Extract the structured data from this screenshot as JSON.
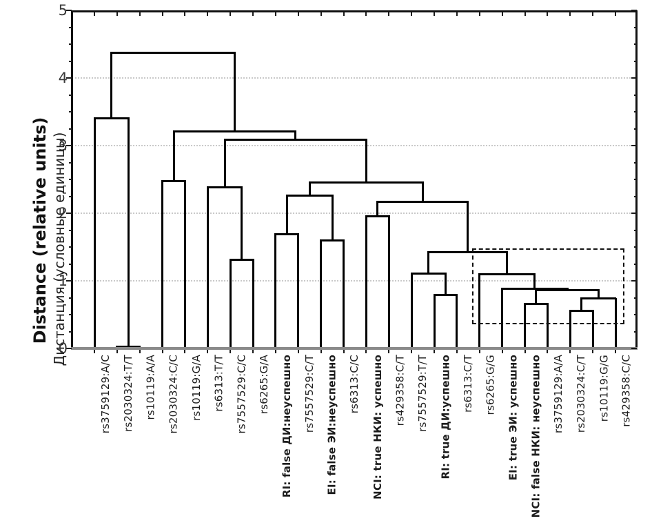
{
  "chart_data": {
    "type": "dendrogram",
    "title": "",
    "ylabel_en": "Distance (relative units)",
    "ylabel_ru": "Дистанция (условные единицы)",
    "ylim": [
      0,
      5
    ],
    "yticks": [
      0,
      1,
      2,
      3,
      4,
      5
    ],
    "minor_tick_step": 0.25,
    "gridlines_at": [
      1,
      2,
      3,
      4
    ],
    "grid_style": "dotted horizontal",
    "legend": "none",
    "leaves": [
      {
        "label": "rs3759129:A/C",
        "bold": false
      },
      {
        "label": "rs2030324:T/T",
        "bold": false
      },
      {
        "label": "rs10119:A/A",
        "bold": false
      },
      {
        "label": "rs2030324:C/C",
        "bold": false
      },
      {
        "label": "rs10119:G/A",
        "bold": false
      },
      {
        "label": "rs6313:T/T",
        "bold": false
      },
      {
        "label": "rs7557529:C/C",
        "bold": false
      },
      {
        "label": "rs6265:G/A",
        "bold": false
      },
      {
        "label": "RI: false ДИ:неуспешно",
        "bold": true
      },
      {
        "label": "rs7557529:C/T",
        "bold": false
      },
      {
        "label": "EI: false ЭИ:неуспешно",
        "bold": true
      },
      {
        "label": "rs6313:C/C",
        "bold": false
      },
      {
        "label": "NCI: true НКИ: успешно",
        "bold": true
      },
      {
        "label": "rs429358:C/T",
        "bold": false
      },
      {
        "label": "rs7557529:T/T",
        "bold": false
      },
      {
        "label": "RI: true ДИ:успешно",
        "bold": true
      },
      {
        "label": "rs6313:C/T",
        "bold": false
      },
      {
        "label": "rs6265:G/G",
        "bold": false
      },
      {
        "label": "EI: true ЭИ: успешно",
        "bold": true
      },
      {
        "label": "NCI: false НКИ: неуспешно",
        "bold": true
      },
      {
        "label": "rs3759129:A/A",
        "bold": false
      },
      {
        "label": "rs2030324:C/T",
        "bold": false
      },
      {
        "label": "rs10119:G/G",
        "bold": false
      },
      {
        "label": "rs429358:C/C",
        "bold": false
      }
    ],
    "merges": [
      {
        "a": "L1",
        "b": "L2",
        "h": 0.03
      },
      {
        "a": "L0",
        "b": "M0",
        "h": 3.4
      },
      {
        "a": "L3",
        "b": "L4",
        "h": 2.47
      },
      {
        "a": "L6",
        "b": "L7",
        "h": 1.31
      },
      {
        "a": "L5",
        "b": "M3",
        "h": 2.38
      },
      {
        "a": "L8",
        "b": "L9",
        "h": 1.69
      },
      {
        "a": "L10",
        "b": "L11",
        "h": 1.6
      },
      {
        "a": "M5",
        "b": "M6",
        "h": 2.26
      },
      {
        "a": "L12",
        "b": "L13",
        "h": 1.95
      },
      {
        "a": "L15",
        "b": "L16",
        "h": 0.79
      },
      {
        "a": "L14",
        "b": "M9",
        "h": 1.11
      },
      {
        "a": "L19",
        "b": "L20",
        "h": 0.66
      },
      {
        "a": "L21",
        "b": "L22",
        "h": 0.56
      },
      {
        "a": "M12",
        "b": "L23",
        "h": 0.74
      },
      {
        "a": "M11",
        "b": "M13",
        "h": 0.86
      },
      {
        "a": "L18",
        "b": "M14",
        "h": 0.88
      },
      {
        "a": "L17",
        "b": "M15",
        "h": 1.1
      },
      {
        "a": "M10",
        "b": "M16",
        "h": 1.42
      },
      {
        "a": "M8",
        "b": "M17",
        "h": 2.17
      },
      {
        "a": "M7",
        "b": "M18",
        "h": 2.45
      },
      {
        "a": "M4",
        "b": "M19",
        "h": 3.09
      },
      {
        "a": "M2",
        "b": "M20",
        "h": 3.21
      },
      {
        "a": "M1",
        "b": "M21",
        "h": 4.37
      }
    ],
    "highlight_box": {
      "style": "dashed",
      "leaf_from": 16.67,
      "leaf_to": 23.27,
      "h_from": 0.4,
      "h_to": 1.48
    }
  },
  "colors": {
    "dendrogram_line": "#000000",
    "bottom_axis": "#8a8a8a",
    "gridline": "#c9c9c9",
    "text": "#1d1d1d"
  }
}
